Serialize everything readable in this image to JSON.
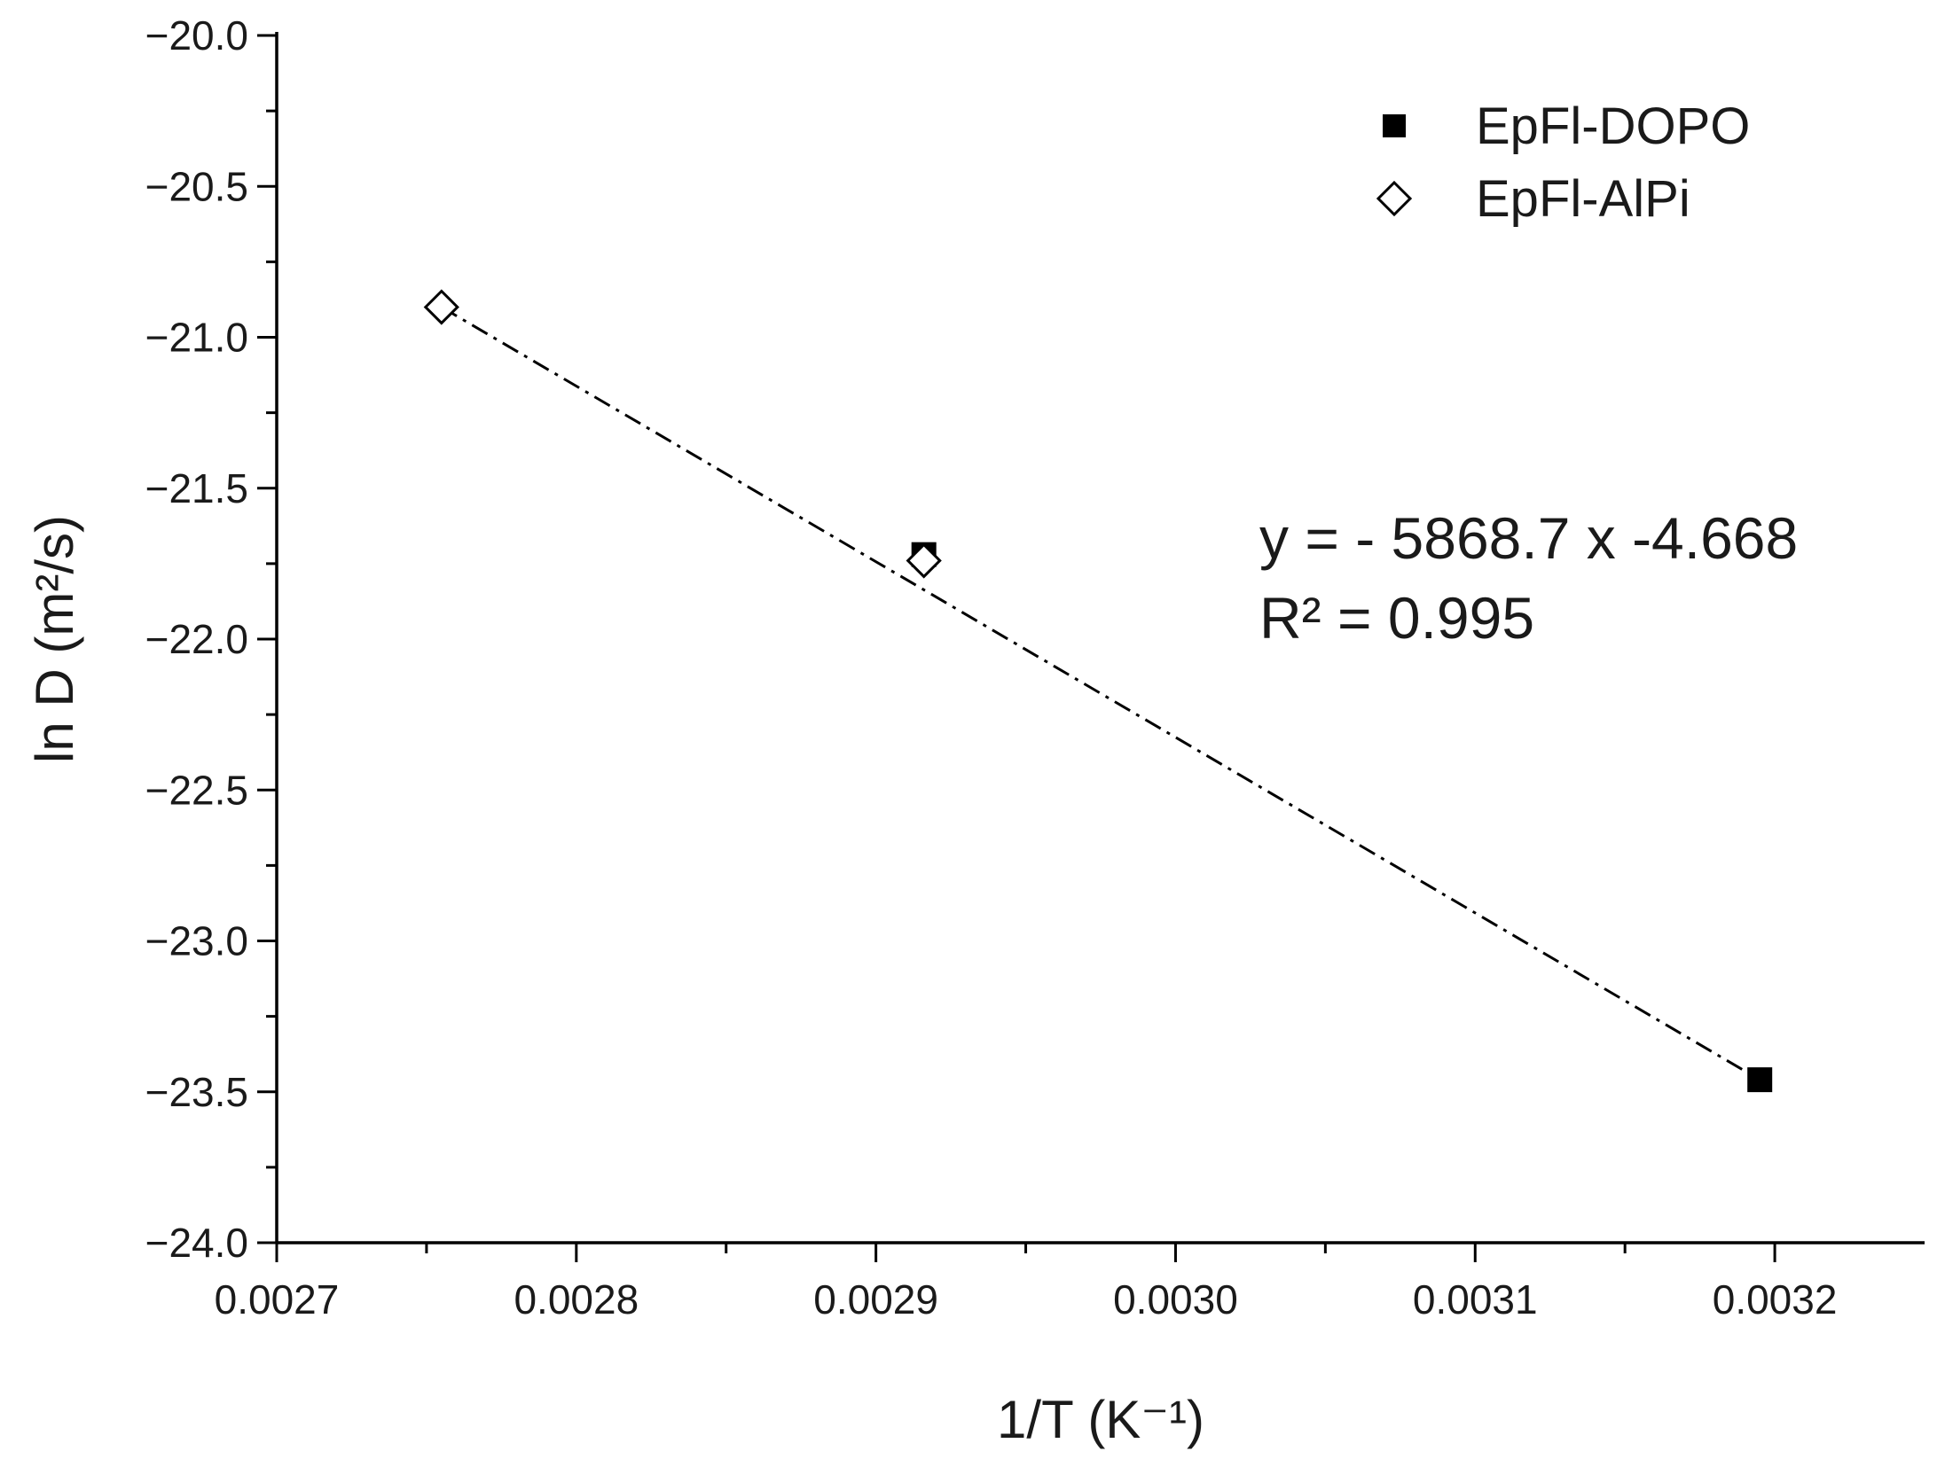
{
  "chart_data": {
    "type": "scatter",
    "title": "",
    "xlabel": "1/T (K⁻¹)",
    "ylabel": "ln D (m²/s)",
    "xlim": [
      0.0027,
      0.00325
    ],
    "ylim": [
      -24.0,
      -20.0
    ],
    "x_ticks": [
      0.0027,
      0.0028,
      0.0029,
      0.003,
      0.0031,
      0.0032
    ],
    "x_tick_labels": [
      "0.0027",
      "0.0028",
      "0.0029",
      "0.0030",
      "0.0031",
      "0.0032"
    ],
    "y_ticks": [
      -20.0,
      -20.5,
      -21.0,
      -21.5,
      -22.0,
      -22.5,
      -23.0,
      -23.5,
      -24.0
    ],
    "y_tick_labels": [
      "−20.0",
      "−20.5",
      "−21.0",
      "−21.5",
      "−22.0",
      "−22.5",
      "−23.0",
      "−23.5",
      "−24.0"
    ],
    "grid": false,
    "legend_position": "top-right",
    "series": [
      {
        "name": "EpFl-DOPO",
        "marker": "filled-square",
        "color": "#000000",
        "points": [
          {
            "x": 0.002916,
            "y": -21.72
          },
          {
            "x": 0.003195,
            "y": -23.46
          }
        ]
      },
      {
        "name": "EpFl-AlPi",
        "marker": "open-diamond",
        "color": "#000000",
        "points": [
          {
            "x": 0.002755,
            "y": -20.9
          },
          {
            "x": 0.002916,
            "y": -21.74
          }
        ]
      }
    ],
    "fit_line": {
      "style": "dash-dot",
      "x_range": [
        0.002755,
        0.003195
      ]
    },
    "annotations": [
      "y = - 5868.7 x -4.668",
      "R² = 0.995"
    ]
  }
}
